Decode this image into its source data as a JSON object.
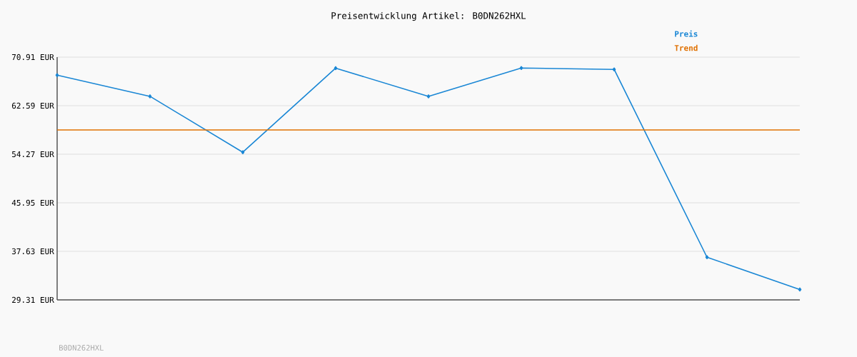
{
  "chart_data": {
    "type": "line",
    "title": "Preisentwicklung Artikel: B0DN262HXL",
    "categories": [
      null,
      null,
      null,
      null,
      null,
      null,
      null,
      null,
      null
    ],
    "series": [
      {
        "name": "Preis",
        "color": "#1a87d5",
        "values": [
          67.81,
          64.19,
          54.61,
          69.02,
          64.19,
          69.04,
          68.8,
          36.62,
          31.09
        ],
        "marker": "diamond"
      },
      {
        "name": "Trend",
        "color": "#e07000",
        "values": [
          58.43,
          58.43,
          58.43,
          58.43,
          58.43,
          58.43,
          58.43,
          58.43,
          58.43
        ],
        "marker": "none"
      }
    ],
    "ylim": [
      29.31,
      70.91
    ],
    "yticks": [
      {
        "value": 29.31,
        "label": "29.31 EUR"
      },
      {
        "value": 37.63,
        "label": "37.63 EUR"
      },
      {
        "value": 45.95,
        "label": "45.95 EUR"
      },
      {
        "value": 54.27,
        "label": "54.27 EUR"
      },
      {
        "value": 62.59,
        "label": "62.59 EUR"
      },
      {
        "value": 70.91,
        "label": "70.91 EUR"
      }
    ],
    "grid": "y",
    "legend": "top right",
    "line_style": "solid",
    "annotations": [
      "B0DN262HXL"
    ]
  }
}
